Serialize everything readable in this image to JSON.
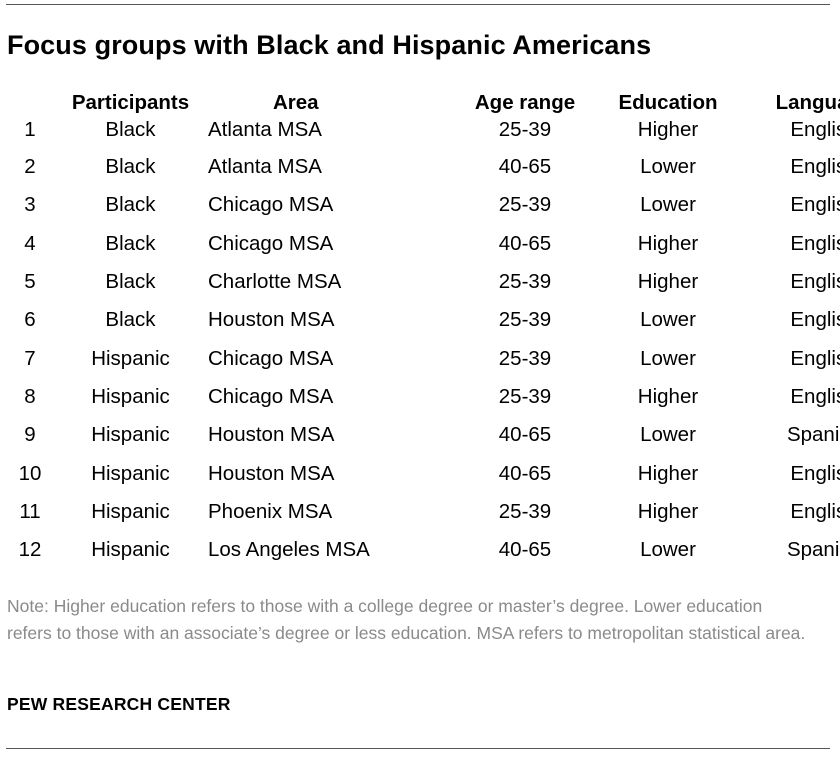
{
  "title": "Focus groups with Black and Hispanic Americans",
  "table": {
    "headers": {
      "number": "",
      "participants": "Participants",
      "area": "Area",
      "age_range": "Age range",
      "education": "Education",
      "language": "Language"
    },
    "rows": [
      {
        "number": "1",
        "participants": "Black",
        "area": "Atlanta MSA",
        "age_range": "25-39",
        "education": "Higher",
        "language": "English"
      },
      {
        "number": "2",
        "participants": "Black",
        "area": "Atlanta MSA",
        "age_range": "40-65",
        "education": "Lower",
        "language": "English"
      },
      {
        "number": "3",
        "participants": "Black",
        "area": "Chicago MSA",
        "age_range": "25-39",
        "education": "Lower",
        "language": "English"
      },
      {
        "number": "4",
        "participants": "Black",
        "area": "Chicago MSA",
        "age_range": "40-65",
        "education": "Higher",
        "language": "English"
      },
      {
        "number": "5",
        "participants": "Black",
        "area": "Charlotte MSA",
        "age_range": "25-39",
        "education": "Higher",
        "language": "English"
      },
      {
        "number": "6",
        "participants": "Black",
        "area": "Houston MSA",
        "age_range": "25-39",
        "education": "Lower",
        "language": "English"
      },
      {
        "number": "7",
        "participants": "Hispanic",
        "area": "Chicago MSA",
        "age_range": "25-39",
        "education": "Lower",
        "language": "English"
      },
      {
        "number": "8",
        "participants": "Hispanic",
        "area": "Chicago MSA",
        "age_range": "25-39",
        "education": "Higher",
        "language": "English"
      },
      {
        "number": "9",
        "participants": "Hispanic",
        "area": "Houston MSA",
        "age_range": "40-65",
        "education": "Lower",
        "language": "Spanish"
      },
      {
        "number": "10",
        "participants": "Hispanic",
        "area": "Houston MSA",
        "age_range": "40-65",
        "education": "Higher",
        "language": "English"
      },
      {
        "number": "11",
        "participants": "Hispanic",
        "area": "Phoenix MSA",
        "age_range": "25-39",
        "education": "Higher",
        "language": "English"
      },
      {
        "number": "12",
        "participants": "Hispanic",
        "area": "Los Angeles MSA",
        "age_range": "40-65",
        "education": "Lower",
        "language": "Spanish"
      }
    ]
  },
  "note": "Note: Higher education refers to those with a college degree or master’s degree. Lower education refers to those with an associate’s degree or less education. MSA refers to metropolitan statistical area.",
  "source": "PEW RESEARCH CENTER",
  "colors": {
    "text": "#000000",
    "note_text": "#8a8a8a",
    "rule": "#555555",
    "background": "#ffffff"
  }
}
